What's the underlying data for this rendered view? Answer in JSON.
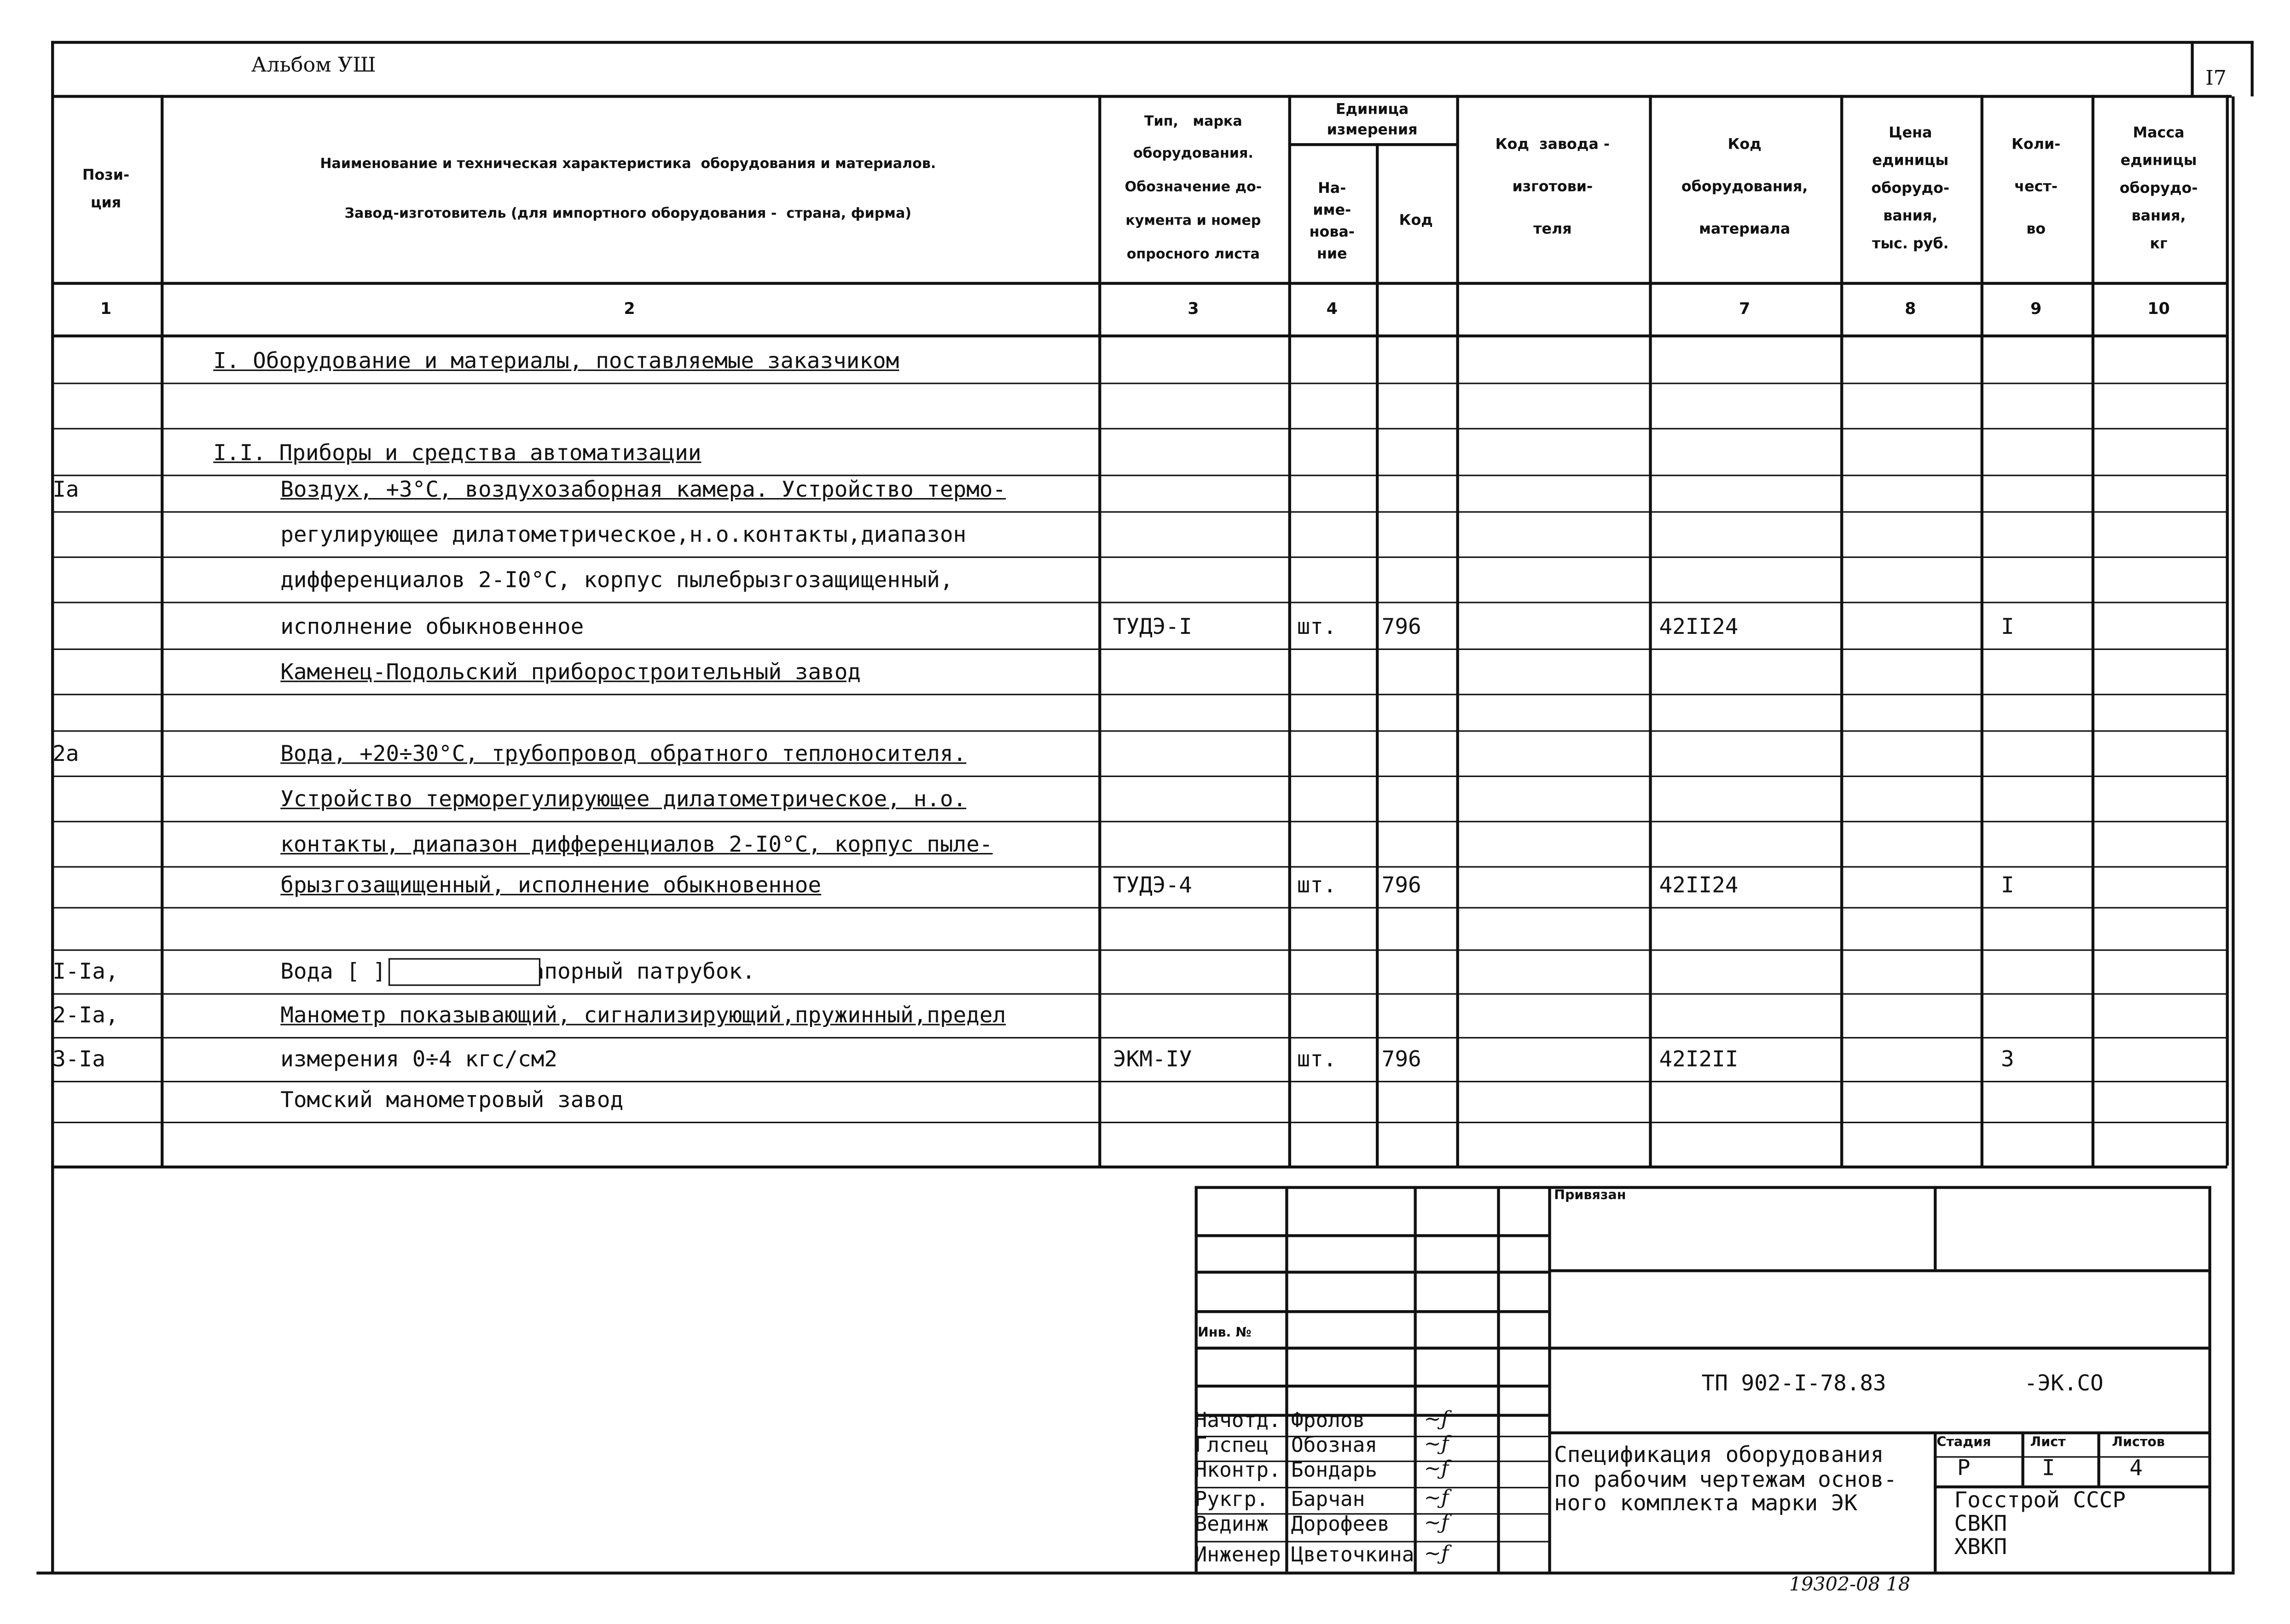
{
  "album": "Альбом УШ",
  "sheet_number": "I7",
  "headers": {
    "position": "Пози-\nция",
    "name": "Наименование и техническая характеристика  оборудования и материалов.\n\nЗавод-изготовитель (для импортного оборудования -  страна, фирма)",
    "type": "Тип,   марка\nоборудования.\nОбозначение до-\nкумента и номер\nопросного листа",
    "unit": "Единица\nизмерения",
    "unit_name": "На-\nиме-\nнова-\nние",
    "unit_code": "Код",
    "factory_code": "Код  завода -\n\nизготови-\n\nтеля",
    "material_code": "Код\n\nоборудования,\n\nматериала",
    "price": "Цена\nединицы\nоборудо-\nвания,\nтыс. руб.",
    "qty": "Коли-\n\nчест-\n\nво",
    "mass": "Масса\nединицы\nоборудо-\nвания,\nкг"
  },
  "column_numbers": [
    "1",
    "2",
    "3",
    "4",
    "",
    "",
    "7",
    "8",
    "9",
    "10"
  ],
  "rows": [
    {
      "pos": "",
      "name": "I. Оборудование и материалы, поставляемые заказчиком",
      "indent": 1,
      "underline": true
    },
    {
      "pos": "",
      "name": ""
    },
    {
      "pos": "",
      "name": "I.I. Приборы и средства автоматизации",
      "indent": 1,
      "underline": true
    },
    {
      "pos": "Ia",
      "name": "Воздух, +3°C, воздухозаборная камера. Устройство термо-",
      "indent": 2,
      "underline": true
    },
    {
      "pos": "",
      "name": "регулирующее дилатометрическое,н.о.контакты,диапазон",
      "indent": 2
    },
    {
      "pos": "",
      "name": "дифференциалов 2-I0°C, корпус пылебрызгозащищенный,",
      "indent": 2
    },
    {
      "pos": "",
      "name": "исполнение обыкновенное",
      "indent": 2,
      "type": "ТУДЭ-I",
      "unit": "шт.",
      "code": "796",
      "material": "42II24",
      "qty": "I"
    },
    {
      "pos": "",
      "name": "Каменец-Подольский приборостроительный завод",
      "indent": 2,
      "underline": true
    },
    {
      "pos": "",
      "name": ""
    },
    {
      "pos": "2a",
      "name": "Вода, +20÷30°C, трубопровод обратного теплоносителя.",
      "indent": 2,
      "underline": true
    },
    {
      "pos": "",
      "name": "Устройство терморегулирующее дилатометрическое, н.о.",
      "indent": 2,
      "underline": true
    },
    {
      "pos": "",
      "name": "контакты, диапазон дифференциалов 2-I0°C, корпус пыле-",
      "indent": 2,
      "underline": true
    },
    {
      "pos": "",
      "name": "брызгозащищенный, исполнение обыкновенное",
      "indent": 2,
      "underline": true,
      "type": "ТУДЭ-4",
      "unit": "шт.",
      "code": "796",
      "material": "42II24",
      "qty": "I"
    },
    {
      "pos": "",
      "name": ""
    },
    {
      "pos": "I-Ia,",
      "name": "Вода [          ] кгс/см2, напорный патрубок.",
      "indent": 2
    },
    {
      "pos": "2-Ia,",
      "name": "Манометр показывающий, сигнализирующий,пружинный,предел",
      "indent": 2,
      "underline": true
    },
    {
      "pos": "3-Ia",
      "name": "измерения 0÷4 кгс/см2",
      "indent": 2,
      "type": "ЭКМ-IУ",
      "unit": "шт.",
      "code": "796",
      "material": "42I2II",
      "qty": "3"
    },
    {
      "pos": "",
      "name": "Томский манометровый завод",
      "indent": 2
    },
    {
      "pos": "",
      "name": ""
    }
  ],
  "title_block": {
    "bound_label": "Привязан",
    "inv_label": "Инв. №",
    "doc_code": "ТП 902-I-78.83",
    "doc_suffix": "-ЭК.СО",
    "signatories": [
      {
        "role": "Начотд.",
        "name": "Фролов"
      },
      {
        "role": "Глспец",
        "name": "Обозная"
      },
      {
        "role": "Нконтр.",
        "name": "Бондарь"
      },
      {
        "role": "Рукгр.",
        "name": "Барчан"
      },
      {
        "role": "Вединж",
        "name": "Дорофеев"
      },
      {
        "role": "Инженер",
        "name": "Цветочкина"
      }
    ],
    "title": "Спецификация оборудования\nпо рабочим чертежам основ-\nного комплекта марки ЭК",
    "stage_label": "Стадия",
    "sheet_label": "Лист",
    "sheets_label": "Листов",
    "stage": "Р",
    "sheet": "I",
    "sheets": "4",
    "org": "Госстрой СССР\nСВКП\nХВКП"
  },
  "footer_handwritten": "19302-08  18"
}
